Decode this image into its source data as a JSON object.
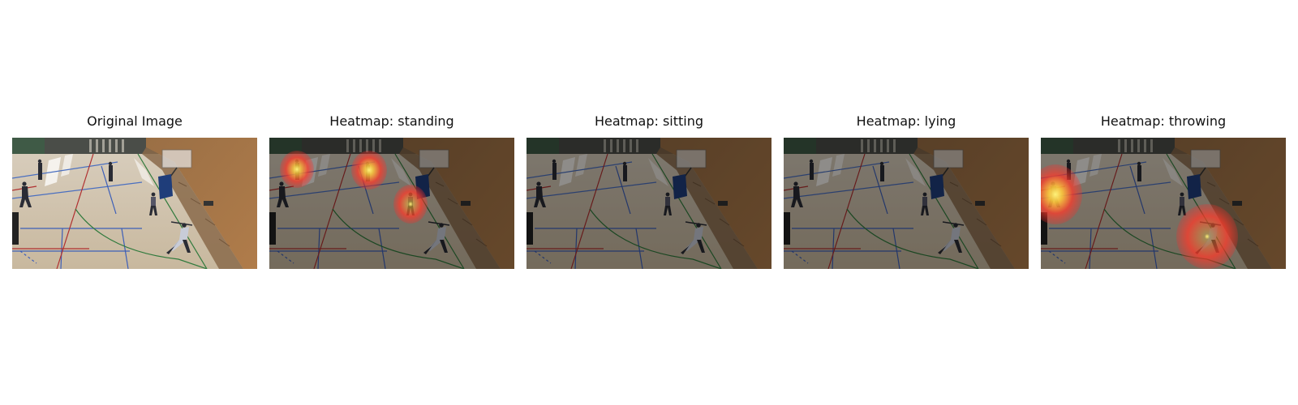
{
  "panels": [
    {
      "title": "Original Image",
      "kind": "original",
      "hotspots": []
    },
    {
      "title": "Heatmap: standing",
      "kind": "heatmap",
      "hotspots": [
        "person-back-left",
        "person-back-center",
        "person-by-goal"
      ]
    },
    {
      "title": "Heatmap: sitting",
      "kind": "heatmap",
      "hotspots": []
    },
    {
      "title": "Heatmap: lying",
      "kind": "heatmap",
      "hotspots": []
    },
    {
      "title": "Heatmap: throwing",
      "kind": "heatmap",
      "hotspots": [
        "person-left-walking",
        "person-throwing"
      ]
    }
  ],
  "colors": {
    "heat_core": "#fff27a",
    "heat_mid": "#ff3a2a",
    "overlay": "#000000"
  }
}
